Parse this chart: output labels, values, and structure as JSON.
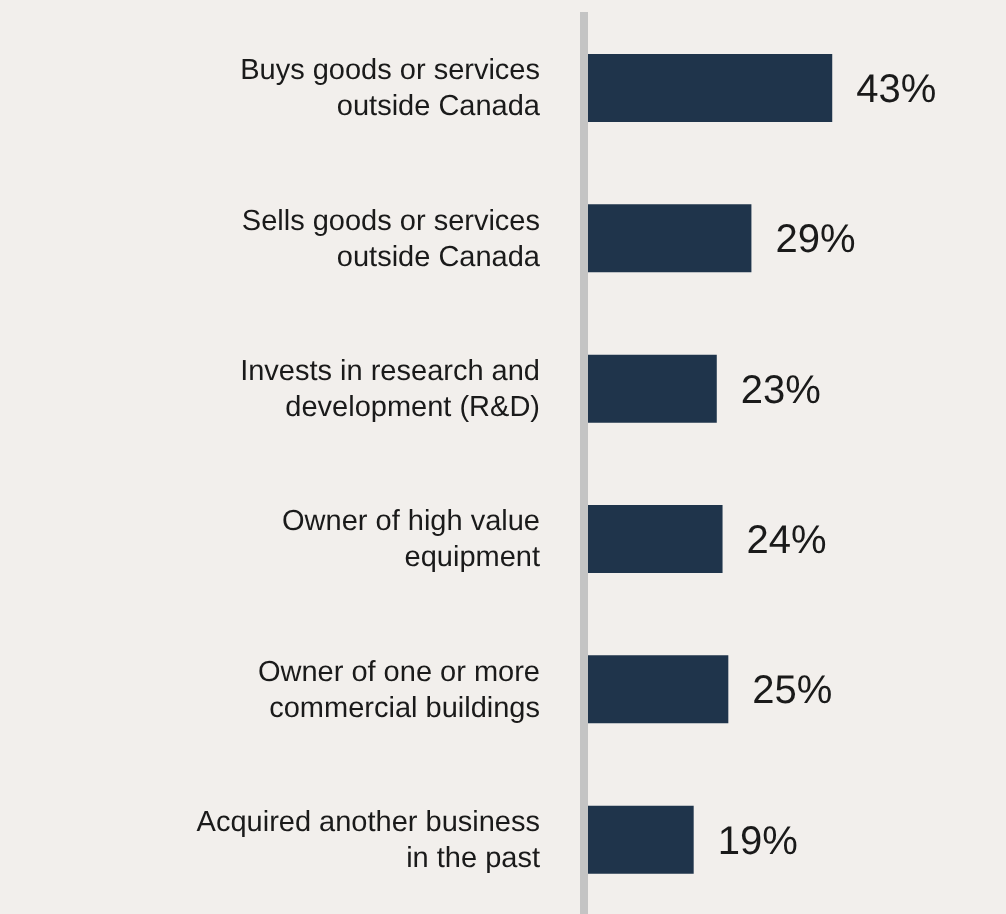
{
  "chart_data": {
    "type": "bar",
    "orientation": "horizontal",
    "categories": [
      "Buys goods or services outside Canada",
      "Sells goods or services outside Canada",
      "Invests in research and development (R&D)",
      "Owner of high value equipment",
      "Owner of one or more commercial buildings",
      "Acquired another business in the past"
    ],
    "values": [
      43,
      29,
      23,
      24,
      25,
      19
    ],
    "value_labels": [
      "43%",
      "29%",
      "23%",
      "24%",
      "25%",
      "19%"
    ],
    "color": "#1f344b"
  }
}
